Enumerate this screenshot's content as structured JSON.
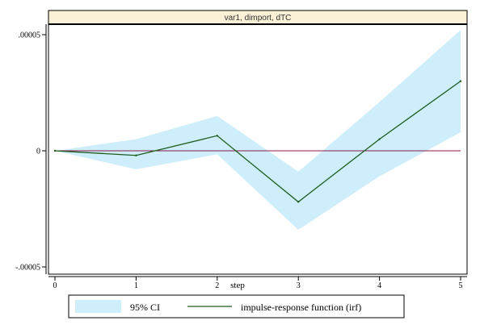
{
  "chart_data": {
    "type": "line",
    "panel_title": "var1, dimport, dTC",
    "xlabel": "step",
    "ylabel": "",
    "x": [
      0,
      1,
      2,
      3,
      4,
      5
    ],
    "xlim": [
      0,
      5
    ],
    "ylim": [
      -5e-05,
      5e-05
    ],
    "x_ticks": [
      "0",
      "1",
      "2",
      "3",
      "4",
      "5"
    ],
    "y_ticks": [
      {
        "value": 5e-05,
        "label": ".00005"
      },
      {
        "value": 0,
        "label": "0"
      },
      {
        "value": -5e-05,
        "label": "-.00005"
      }
    ],
    "zero_line": 0,
    "grid": false,
    "legend_position": "bottom",
    "series": [
      {
        "name": "95% CI",
        "kind": "band",
        "lower": [
          0,
          -8e-06,
          -1.5e-06,
          -3.4e-05,
          -1.1e-05,
          8e-06
        ],
        "upper": [
          0,
          5e-06,
          1.5e-05,
          -9e-06,
          2.1e-05,
          5.2e-05
        ],
        "color": "#cdeefa"
      },
      {
        "name": "impulse-response function (irf)",
        "kind": "line",
        "values": [
          0,
          -2e-06,
          6.5e-06,
          -2.2e-05,
          5e-06,
          3e-05
        ],
        "color": "#1e5a1e"
      }
    ],
    "colors": {
      "zero_line": "#8b1a4a",
      "title_bar": "#fbf1d6"
    }
  }
}
